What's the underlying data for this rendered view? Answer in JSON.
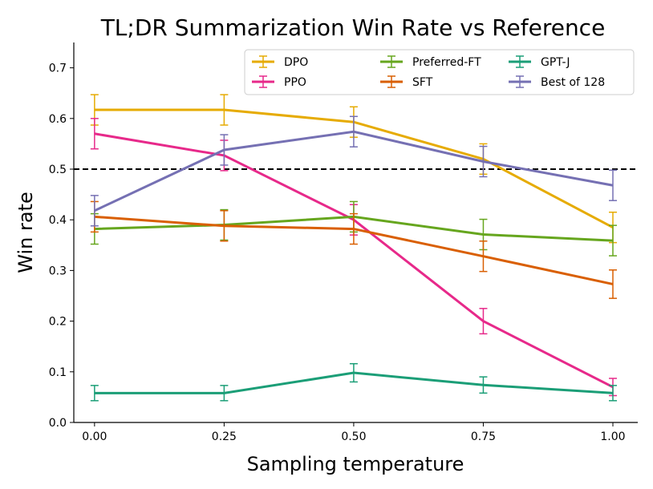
{
  "chart_data": {
    "type": "line",
    "title": "TL;DR Summarization Win Rate vs Reference",
    "xlabel": "Sampling temperature",
    "ylabel": "Win rate",
    "x": [
      0.0,
      0.25,
      0.5,
      0.75,
      1.0
    ],
    "xticks": [
      "0.00",
      "0.25",
      "0.50",
      "0.75",
      "1.00"
    ],
    "yticks": [
      "0.0",
      "0.1",
      "0.2",
      "0.3",
      "0.4",
      "0.5",
      "0.6",
      "0.7"
    ],
    "xlim": [
      -0.04,
      1.048
    ],
    "ylim": [
      0,
      0.75
    ],
    "reference_line": 0.5,
    "legend_position": "top-right",
    "series": [
      {
        "name": "DPO",
        "color": "#e6ab02",
        "values": [
          0.617,
          0.617,
          0.593,
          0.52,
          0.385
        ],
        "errors": [
          0.03,
          0.03,
          0.03,
          0.03,
          0.03
        ]
      },
      {
        "name": "PPO",
        "color": "#e7298a",
        "values": [
          0.57,
          0.527,
          0.4,
          0.2,
          0.07
        ],
        "errors": [
          0.03,
          0.03,
          0.03,
          0.025,
          0.017
        ]
      },
      {
        "name": "Preferred-FT",
        "color": "#66a61e",
        "values": [
          0.382,
          0.39,
          0.406,
          0.371,
          0.359
        ],
        "errors": [
          0.03,
          0.03,
          0.03,
          0.03,
          0.03
        ]
      },
      {
        "name": "SFT",
        "color": "#d95f02",
        "values": [
          0.406,
          0.388,
          0.382,
          0.328,
          0.273
        ],
        "errors": [
          0.03,
          0.03,
          0.03,
          0.03,
          0.028
        ]
      },
      {
        "name": "GPT-J",
        "color": "#1b9e77",
        "values": [
          0.058,
          0.058,
          0.098,
          0.074,
          0.058
        ],
        "errors": [
          0.015,
          0.015,
          0.018,
          0.016,
          0.015
        ]
      },
      {
        "name": "Best of 128",
        "color": "#7570b3",
        "values": [
          0.418,
          0.538,
          0.574,
          0.515,
          0.468
        ],
        "errors": [
          0.03,
          0.03,
          0.03,
          0.03,
          0.03
        ]
      }
    ]
  }
}
